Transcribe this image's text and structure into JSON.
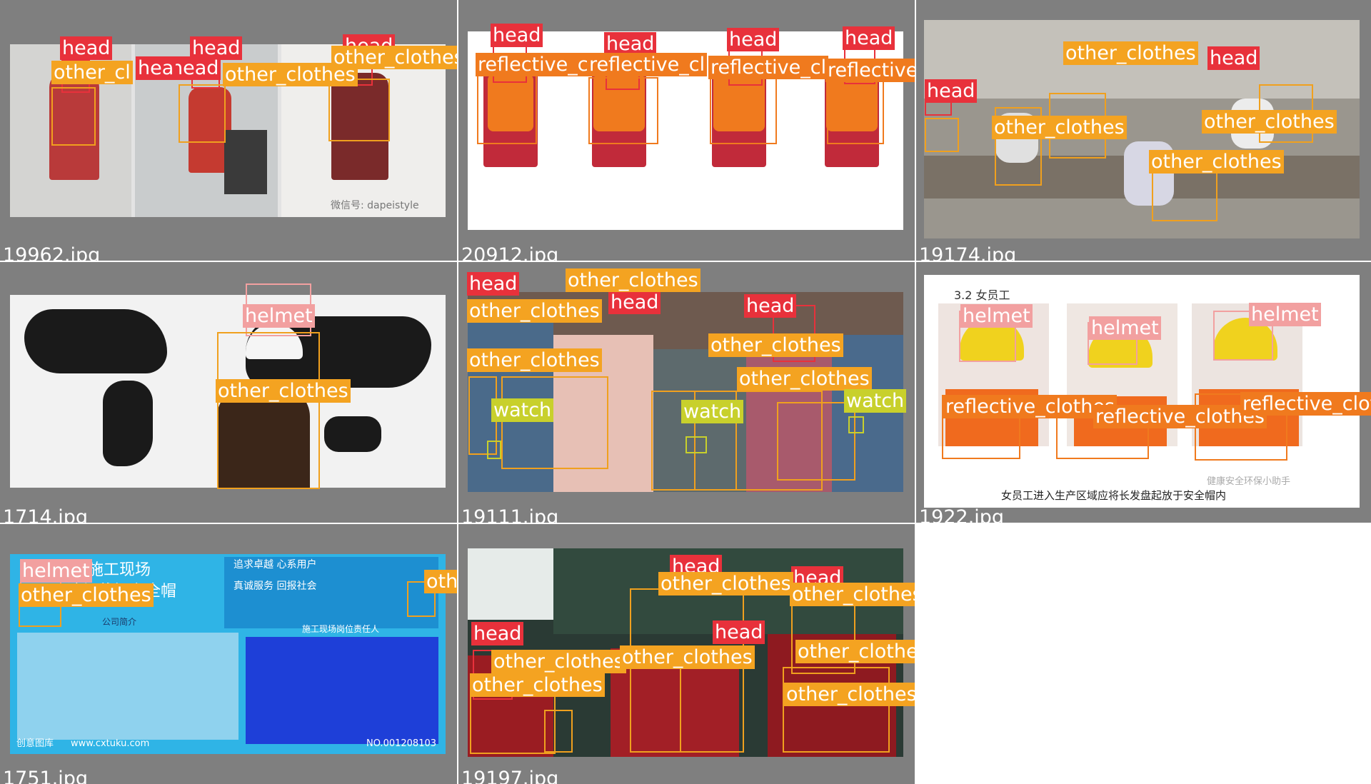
{
  "colors": {
    "head": "#e8313b",
    "other_clothes": "#f4a321",
    "reflective_clothes": "#f07a1e",
    "helmet": "#f2a0a0",
    "watch": "#c8d02c",
    "tile_bg": "#7f7f7f"
  },
  "tiles": [
    {
      "filename": "19962.jpg",
      "watermark": "微信号: dapeistyle"
    },
    {
      "filename": "20912.jpg"
    },
    {
      "filename": "19174.jpg"
    },
    {
      "filename": "1714.jpg"
    },
    {
      "filename": "19111.jpg"
    },
    {
      "filename": "1922.jpg",
      "caption_top": "3.2 女员工",
      "caption_bottom": "女员工进入生产区域应将长发盘起放于安全帽内",
      "watermark": "健康安全环保小助手"
    },
    {
      "filename": "1751.jpg",
      "poster": {
        "title": "施工现场",
        "subtitle": "请佩戴好安全帽",
        "slogan1": "追求卓越 心系用户",
        "slogan2": "真诚服务 回报社会",
        "company": "公司简介",
        "board": "施工现场岗位责任人",
        "footer": "www.cxtuku.com",
        "footer_logo": "创意图库",
        "number": "NO.001208103"
      }
    },
    {
      "filename": "19197.jpg"
    }
  ],
  "labels": {
    "head": "head",
    "other_clothes": "other_clothes",
    "reflective_clothes": "reflective_clothes",
    "helmet": "helmet",
    "watch": "watch"
  },
  "detections": [
    {
      "tile": 0,
      "cls": "head",
      "text": "head"
    },
    {
      "tile": 0,
      "cls": "head",
      "text": "head"
    },
    {
      "tile": 0,
      "cls": "head",
      "text": "head"
    },
    {
      "tile": 0,
      "cls": "head",
      "text": "head"
    },
    {
      "tile": 0,
      "cls": "head",
      "text": "hea"
    },
    {
      "tile": 0,
      "cls": "other_clothes",
      "text": "other_cl"
    },
    {
      "tile": 0,
      "cls": "other_clothes",
      "text": "other_clothes"
    },
    {
      "tile": 0,
      "cls": "other_clothes",
      "text": "other_clothes"
    },
    {
      "tile": 1,
      "cls": "head",
      "text": "head"
    },
    {
      "tile": 1,
      "cls": "head",
      "text": "head"
    },
    {
      "tile": 1,
      "cls": "head",
      "text": "head"
    },
    {
      "tile": 1,
      "cls": "head",
      "text": "head"
    },
    {
      "tile": 1,
      "cls": "reflective_clothes",
      "text": "reflective_cl"
    },
    {
      "tile": 1,
      "cls": "reflective_clothes",
      "text": "reflective_cl"
    },
    {
      "tile": 1,
      "cls": "reflective_clothes",
      "text": "reflective_cl"
    },
    {
      "tile": 1,
      "cls": "reflective_clothes",
      "text": "reflective_"
    },
    {
      "tile": 2,
      "cls": "other_clothes",
      "text": "other_clothes"
    },
    {
      "tile": 2,
      "cls": "head",
      "text": "head"
    },
    {
      "tile": 2,
      "cls": "head",
      "text": "head"
    },
    {
      "tile": 2,
      "cls": "other_clothes",
      "text": "other_clothes"
    },
    {
      "tile": 2,
      "cls": "other_clothes",
      "text": "other_clothes"
    },
    {
      "tile": 2,
      "cls": "other_clothes",
      "text": "other_clothes"
    },
    {
      "tile": 3,
      "cls": "helmet",
      "text": "helmet"
    },
    {
      "tile": 3,
      "cls": "other_clothes",
      "text": "other_clothes"
    },
    {
      "tile": 4,
      "cls": "head",
      "text": "head"
    },
    {
      "tile": 4,
      "cls": "head",
      "text": "head"
    },
    {
      "tile": 4,
      "cls": "head",
      "text": "head"
    },
    {
      "tile": 4,
      "cls": "other_clothes",
      "text": "other_clothes"
    },
    {
      "tile": 4,
      "cls": "other_clothes",
      "text": "other_clothes"
    },
    {
      "tile": 4,
      "cls": "other_clothes",
      "text": "other_clothes"
    },
    {
      "tile": 4,
      "cls": "other_clothes",
      "text": "other_clothes"
    },
    {
      "tile": 4,
      "cls": "other_clothes",
      "text": "other_clothes"
    },
    {
      "tile": 4,
      "cls": "watch",
      "text": "watch"
    },
    {
      "tile": 4,
      "cls": "watch",
      "text": "watch"
    },
    {
      "tile": 4,
      "cls": "watch",
      "text": "watch"
    },
    {
      "tile": 5,
      "cls": "helmet",
      "text": "helmet"
    },
    {
      "tile": 5,
      "cls": "helmet",
      "text": "helmet"
    },
    {
      "tile": 5,
      "cls": "helmet",
      "text": "helmet"
    },
    {
      "tile": 5,
      "cls": "reflective_clothes",
      "text": "reflective_clothes"
    },
    {
      "tile": 5,
      "cls": "reflective_clothes",
      "text": "reflective_clothes"
    },
    {
      "tile": 5,
      "cls": "reflective_clothes",
      "text": "reflective_clot"
    },
    {
      "tile": 6,
      "cls": "helmet",
      "text": "helmet"
    },
    {
      "tile": 6,
      "cls": "other_clothes",
      "text": "other_clothes"
    },
    {
      "tile": 6,
      "cls": "other_clothes",
      "text": "other_clothes"
    },
    {
      "tile": 7,
      "cls": "head",
      "text": "head"
    },
    {
      "tile": 7,
      "cls": "head",
      "text": "head"
    },
    {
      "tile": 7,
      "cls": "head",
      "text": "head"
    },
    {
      "tile": 7,
      "cls": "head",
      "text": "head"
    },
    {
      "tile": 7,
      "cls": "other_clothes",
      "text": "other_clothes"
    },
    {
      "tile": 7,
      "cls": "other_clothes",
      "text": "other_clothes"
    },
    {
      "tile": 7,
      "cls": "other_clothes",
      "text": "other_clothes"
    },
    {
      "tile": 7,
      "cls": "other_clothes",
      "text": "other_clothes"
    },
    {
      "tile": 7,
      "cls": "other_clothes",
      "text": "other_clothes"
    },
    {
      "tile": 7,
      "cls": "other_clothes",
      "text": "other_clothes"
    },
    {
      "tile": 7,
      "cls": "other_clothes",
      "text": "other_clothes"
    }
  ]
}
